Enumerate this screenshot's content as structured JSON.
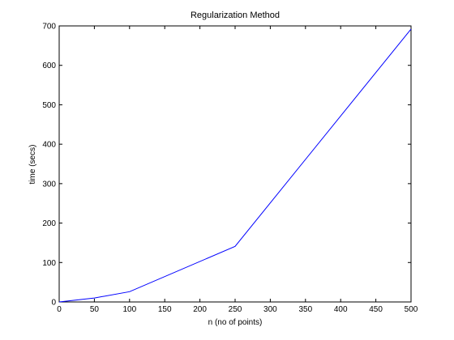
{
  "chart_data": {
    "type": "line",
    "title": "Regularization Method",
    "xlabel": "n (no of points)",
    "ylabel": "time (secs)",
    "xlim": [
      0,
      500
    ],
    "ylim": [
      0,
      700
    ],
    "xticks": [
      0,
      50,
      100,
      150,
      200,
      250,
      300,
      350,
      400,
      450,
      500
    ],
    "yticks": [
      0,
      100,
      200,
      300,
      400,
      500,
      600,
      700
    ],
    "grid": false,
    "series": [
      {
        "color": "#0000ff",
        "x": [
          0,
          50,
          100,
          250,
          500
        ],
        "y": [
          0,
          10,
          26,
          141,
          692
        ]
      }
    ]
  }
}
